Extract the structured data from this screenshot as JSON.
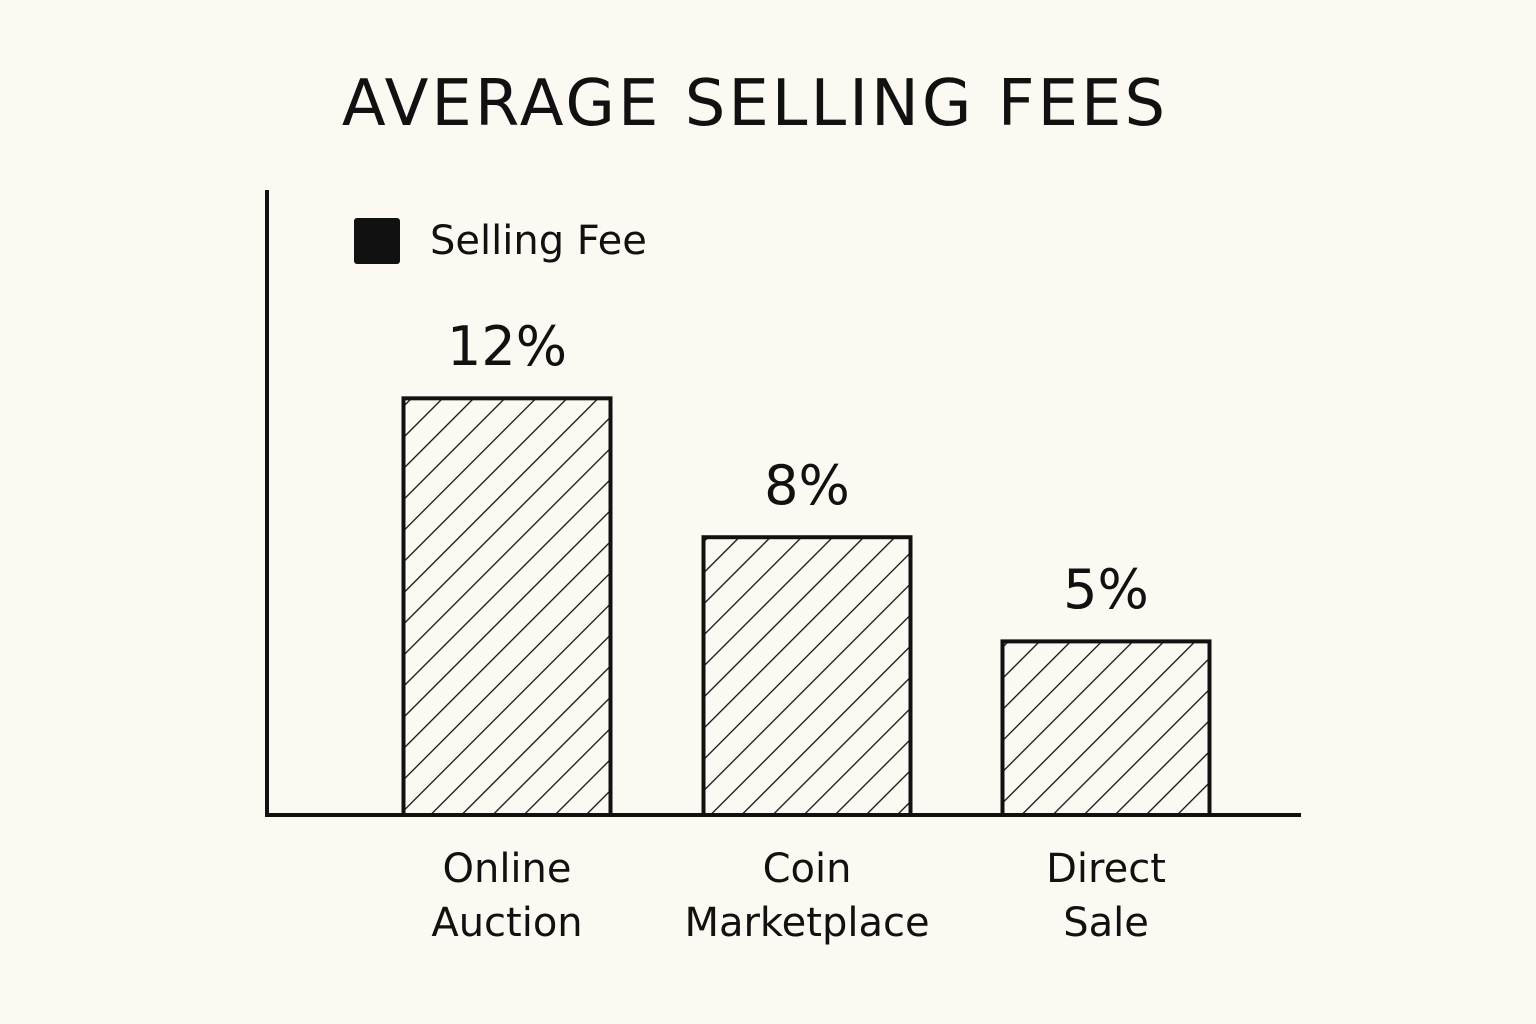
{
  "chart_data": {
    "type": "bar",
    "title": "AVERAGE SELLING FEES",
    "categories": [
      {
        "line1": "Online",
        "line2": "Auction"
      },
      {
        "line1": "Coin",
        "line2": "Marketplace"
      },
      {
        "line1": "Direct",
        "line2": "Sale"
      }
    ],
    "series": [
      {
        "name": "Selling Fee",
        "values": [
          12,
          8,
          5
        ],
        "value_labels": [
          "12%",
          "8%",
          "5%"
        ]
      }
    ],
    "unit": "%",
    "ylim": [
      0,
      18
    ],
    "grid": false,
    "legend_position": "top-left",
    "colors": {
      "ink": "#111111",
      "background": "#fbf9f2",
      "bar_fill": "diagonal-hatch"
    }
  }
}
